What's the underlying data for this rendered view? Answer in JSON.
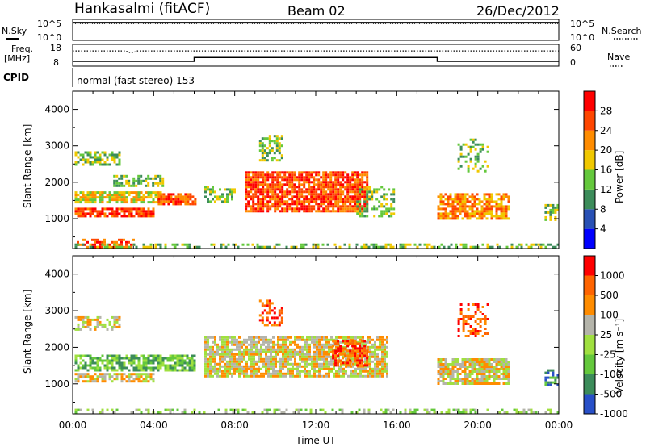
{
  "header": {
    "station": "Hankasalmi (fitACF)",
    "beam": "Beam 02",
    "date": "26/Dec/2012"
  },
  "side_labels": {
    "nsky": "N.Sky",
    "nsearch": "N.Search",
    "freq": "Freq.",
    "mhz": "[MHz]",
    "nave": "Nave",
    "cpid": "CPID"
  },
  "cpid_text": "normal (fast stereo) 153",
  "colors": {
    "line": "#000000",
    "scatter_grey": "#b4b4aa"
  },
  "chart_data": [
    {
      "type": "line",
      "panel": "noise",
      "left_axis": {
        "label": "N.Sky",
        "ticks": [
          "10^5",
          "10^0"
        ]
      },
      "right_axis": {
        "label": "N.Search",
        "ticks": [
          "10^5",
          "10^0"
        ]
      },
      "series": [
        {
          "name": "N.Sky",
          "x": [
            0,
            24
          ],
          "values": [
            4.2,
            4.2
          ]
        },
        {
          "name": "N.Search",
          "x": [
            0,
            24
          ],
          "values": [
            4.0,
            4.0
          ]
        }
      ]
    },
    {
      "type": "line",
      "panel": "freq_nave",
      "left_axis": {
        "label": "Freq. [MHz]",
        "ticks": [
          "18",
          "8"
        ],
        "ylim": [
          8,
          18
        ]
      },
      "right_axis": {
        "label": "Nave",
        "ticks": [
          "60",
          "0"
        ],
        "ylim": [
          0,
          60
        ]
      },
      "series": [
        {
          "name": "Freq.",
          "x": [
            0,
            6,
            6,
            18,
            18,
            24
          ],
          "values": [
            10.2,
            10.2,
            12.0,
            12.0,
            10.2,
            10.2
          ]
        },
        {
          "name": "Nave",
          "x": [
            0,
            2.6,
            2.9,
            3.2,
            24
          ],
          "values": [
            42,
            42,
            36,
            42,
            42
          ]
        }
      ]
    },
    {
      "type": "heatmap",
      "panel": "power",
      "title": "",
      "xlabel": "",
      "ylabel": "Slant Range [km]",
      "xlim": [
        0,
        24
      ],
      "ylim": [
        180,
        4500
      ],
      "x_tick_labels": [
        "00:00",
        "04:00",
        "08:00",
        "12:00",
        "16:00",
        "20:00",
        "00:00"
      ],
      "y_ticks": [
        1000,
        2000,
        3000,
        4000
      ],
      "colorbar": {
        "label": "Power [dB]",
        "ticks": [
          "4",
          "8",
          "12",
          "16",
          "20",
          "24",
          "28"
        ],
        "colors": [
          "#0000ff",
          "#2850b4",
          "#3c8c5a",
          "#64c83c",
          "#f0c800",
          "#ff8c00",
          "#ff4600",
          "#ff0000"
        ]
      },
      "blobs": [
        {
          "t0": 0.1,
          "t1": 2.3,
          "r0": 2500,
          "r1": 2850,
          "level": 3,
          "density": 0.55
        },
        {
          "t0": 0.1,
          "t1": 4.3,
          "r0": 1450,
          "r1": 1750,
          "level": 4,
          "density": 0.8
        },
        {
          "t0": 0.1,
          "t1": 4.0,
          "r0": 1050,
          "r1": 1300,
          "level": 6,
          "density": 0.85
        },
        {
          "t0": 4.2,
          "t1": 6.0,
          "r0": 1400,
          "r1": 1700,
          "level": 6,
          "density": 0.8
        },
        {
          "t0": 2.0,
          "t1": 4.5,
          "r0": 1900,
          "r1": 2200,
          "level": 3,
          "density": 0.55
        },
        {
          "t0": 0.2,
          "t1": 3.0,
          "r0": 200,
          "r1": 450,
          "level": 6,
          "density": 0.5
        },
        {
          "t0": 6.5,
          "t1": 8.0,
          "r0": 1500,
          "r1": 1900,
          "level": 3,
          "density": 0.5
        },
        {
          "t0": 8.5,
          "t1": 14.5,
          "r0": 1200,
          "r1": 2300,
          "level": 6,
          "density": 0.85
        },
        {
          "t0": 9.2,
          "t1": 10.3,
          "r0": 2600,
          "r1": 3300,
          "level": 3,
          "density": 0.5
        },
        {
          "t0": 14.0,
          "t1": 15.8,
          "r0": 1100,
          "r1": 1900,
          "level": 3,
          "density": 0.45
        },
        {
          "t0": 18.0,
          "t1": 21.5,
          "r0": 1000,
          "r1": 1700,
          "level": 5,
          "density": 0.75
        },
        {
          "t0": 19.0,
          "t1": 20.5,
          "r0": 2300,
          "r1": 3200,
          "level": 3,
          "density": 0.35
        },
        {
          "t0": 23.3,
          "t1": 24.0,
          "r0": 1000,
          "r1": 1400,
          "level": 3,
          "density": 0.6
        },
        {
          "t0": 0.1,
          "t1": 24.0,
          "r0": 190,
          "r1": 320,
          "level": 3,
          "density": 0.4
        }
      ]
    },
    {
      "type": "heatmap",
      "panel": "velocity",
      "title": "",
      "xlabel": "Time UT",
      "ylabel": "Slant Range [km]",
      "xlim": [
        0,
        24
      ],
      "ylim": [
        180,
        4500
      ],
      "x_tick_labels": [
        "00:00",
        "04:00",
        "08:00",
        "12:00",
        "16:00",
        "20:00",
        "00:00"
      ],
      "y_ticks": [
        1000,
        2000,
        3000,
        4000
      ],
      "colorbar": {
        "label": "Velocity [m s⁻¹]",
        "ticks": [
          "1000",
          "500",
          "100",
          "25",
          "-25",
          "-100",
          "-500",
          "-1000"
        ],
        "colors": [
          "#2850c8",
          "#3c8c5a",
          "#64c83c",
          "#a0e040",
          "#b4b4aa",
          "#ff8c00",
          "#ff6400",
          "#ff0000"
        ]
      },
      "blobs": [
        {
          "t0": 0.1,
          "t1": 2.3,
          "r0": 2500,
          "r1": 2850,
          "level": 4,
          "density": 0.5
        },
        {
          "t0": 0.1,
          "t1": 6.0,
          "r0": 1350,
          "r1": 1800,
          "level": 2,
          "density": 0.75
        },
        {
          "t0": 0.1,
          "t1": 4.0,
          "r0": 1050,
          "r1": 1300,
          "level": 4,
          "density": 0.7
        },
        {
          "t0": 6.5,
          "t1": 15.5,
          "r0": 1200,
          "r1": 2300,
          "level": 4,
          "density": 0.8
        },
        {
          "t0": 12.8,
          "t1": 14.5,
          "r0": 1500,
          "r1": 2200,
          "level": 6,
          "density": 0.65
        },
        {
          "t0": 9.2,
          "t1": 10.3,
          "r0": 2600,
          "r1": 3300,
          "level": 6,
          "density": 0.45
        },
        {
          "t0": 18.0,
          "t1": 21.5,
          "r0": 1000,
          "r1": 1700,
          "level": 4,
          "density": 0.85
        },
        {
          "t0": 19.0,
          "t1": 20.5,
          "r0": 2300,
          "r1": 3200,
          "level": 6,
          "density": 0.35
        },
        {
          "t0": 23.3,
          "t1": 24.0,
          "r0": 1000,
          "r1": 1400,
          "level": 1,
          "density": 0.5
        },
        {
          "t0": 0.1,
          "t1": 24.0,
          "r0": 190,
          "r1": 320,
          "level": 3,
          "density": 0.35
        }
      ]
    }
  ]
}
